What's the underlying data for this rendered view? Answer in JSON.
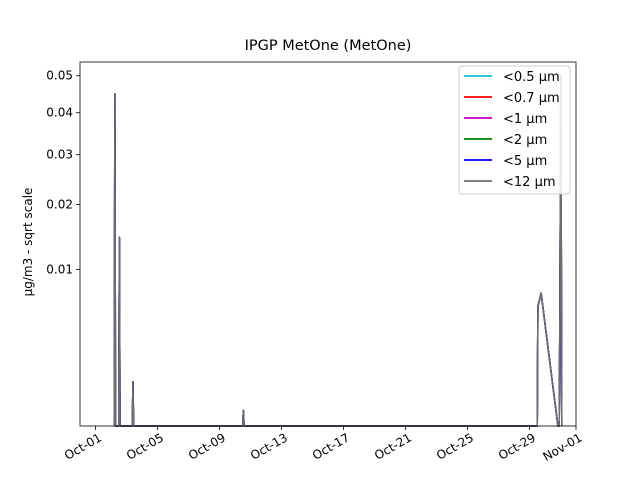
{
  "chart_data": {
    "type": "line",
    "title": "IPGP MetOne (MetOne)",
    "xlabel": "",
    "ylabel": "µg/m3 - sqrt scale",
    "y_scale": "sqrt",
    "ylim": [
      0,
      0.054
    ],
    "xlim": [
      "2023-09-30",
      "2023-11-01"
    ],
    "grid": false,
    "legend_position": "top-right",
    "x_ticks": [
      "Oct-01",
      "Oct-05",
      "Oct-09",
      "Oct-13",
      "Oct-17",
      "Oct-21",
      "Oct-25",
      "Oct-29",
      "Nov-01"
    ],
    "y_ticks": [
      "0.01",
      "0.02",
      "0.03",
      "0.04",
      "0.05"
    ],
    "series": [
      {
        "name": "<0.5 µm",
        "color": "#17becf"
      },
      {
        "name": "<0.7 µm",
        "color": "#ff0000"
      },
      {
        "name": "<1 µm",
        "color": "#bf00bf"
      },
      {
        "name": "<2 µm",
        "color": "#008000"
      },
      {
        "name": "<5 µm",
        "color": "#0000ff"
      },
      {
        "name": "<12 µm",
        "color": "#6e6e6e",
        "points": [
          [
            "2023-10-02T05:00",
            0.0
          ],
          [
            "2023-10-02T06:00",
            0.045
          ],
          [
            "2023-10-02T07:00",
            0.0
          ],
          [
            "2023-10-02T12:00",
            0.0
          ],
          [
            "2023-10-02T13:00",
            0.0145
          ],
          [
            "2023-10-02T14:00",
            0.0
          ],
          [
            "2023-10-03T09:00",
            0.0
          ],
          [
            "2023-10-03T10:00",
            0.0008
          ],
          [
            "2023-10-03T11:00",
            0.0
          ],
          [
            "2023-10-10T12:00",
            0.0
          ],
          [
            "2023-10-10T13:00",
            0.0001
          ],
          [
            "2023-10-10T14:00",
            0.0
          ],
          [
            "2023-10-29T12:00",
            0.0
          ],
          [
            "2023-10-29T13:00",
            0.0058
          ],
          [
            "2023-10-29T18:00",
            0.0072
          ],
          [
            "2023-10-30T20:00",
            0.0
          ],
          [
            "2023-10-30T22:00",
            0.0
          ],
          [
            "2023-10-30T23:00",
            0.0045
          ],
          [
            "2023-10-30T23:30",
            0.0145
          ],
          [
            "2023-10-31T00:30",
            0.05
          ],
          [
            "2023-10-31T02:00",
            0.0
          ]
        ]
      }
    ]
  }
}
